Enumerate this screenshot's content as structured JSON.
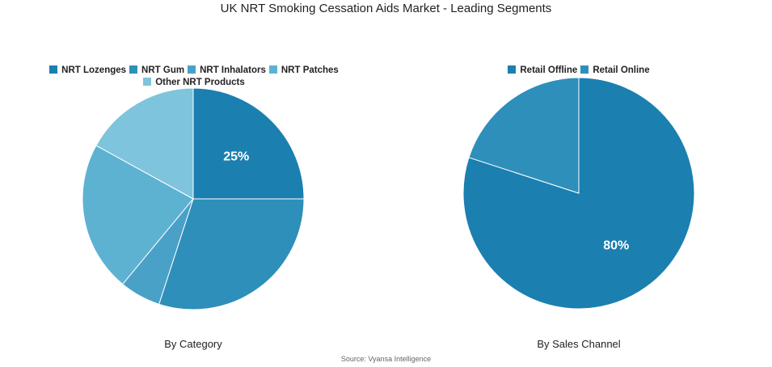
{
  "title": "UK NRT Smoking Cessation Aids Market - Leading Segments",
  "source": "Source: Vyansa Intelligence",
  "chart_data": [
    {
      "type": "pie",
      "subtitle": "By Category",
      "categories": [
        "NRT Lozenges",
        "NRT Gum",
        "NRT Inhalators",
        "NRT Patches",
        "Other NRT Products"
      ],
      "values": [
        25,
        30,
        6,
        22,
        17
      ],
      "colors": [
        "#1b7fb0",
        "#2e8fba",
        "#4aa1c7",
        "#5db2d2",
        "#7ec4dc"
      ],
      "data_labels": [
        "25%",
        "",
        "",
        "",
        ""
      ],
      "legend_position": "top"
    },
    {
      "type": "pie",
      "subtitle": "By Sales Channel",
      "categories": [
        "Retail Offline",
        "Retail Online"
      ],
      "values": [
        80,
        20
      ],
      "colors": [
        "#1b7fb0",
        "#2e8fba"
      ],
      "data_labels": [
        "80%",
        ""
      ],
      "legend_position": "top"
    }
  ]
}
